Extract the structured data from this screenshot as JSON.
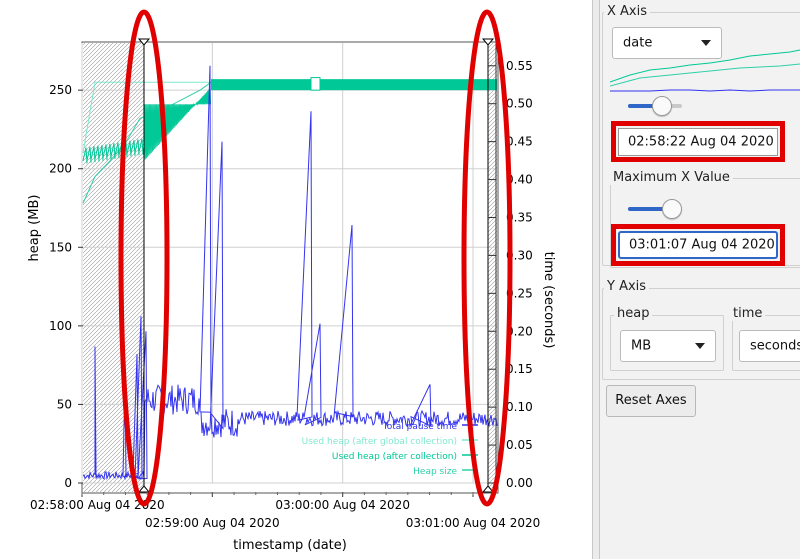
{
  "chart": {
    "y_left_label": "heap (MB)",
    "y_right_label": "time (seconds)",
    "x_label": "timestamp (date)",
    "y_left_ticks": [
      "0",
      "50",
      "100",
      "150",
      "200",
      "250"
    ],
    "y_right_ticks": [
      "0.00",
      "0.05",
      "0.10",
      "0.15",
      "0.20",
      "0.25",
      "0.30",
      "0.35",
      "0.40",
      "0.45",
      "0.50",
      "0.55"
    ],
    "x_ticks": [
      "02:58:00 Aug 04 2020",
      "02:59:00 Aug 04 2020",
      "03:00:00 Aug 04 2020",
      "03:01:00 Aug 04 2020"
    ],
    "legend": [
      {
        "label": "Total pause time",
        "color": "#3333ee"
      },
      {
        "label": "Used heap (after global collection)",
        "color": "#7fe8cf"
      },
      {
        "label": "Used heap (after collection)",
        "color": "#00c896"
      },
      {
        "label": "Heap size",
        "color": "#2fd0a8"
      }
    ]
  },
  "chart_data": {
    "type": "line",
    "xlabel": "timestamp (date)",
    "ylabel": "heap (MB)",
    "y2label": "time (seconds)",
    "ylim": [
      0,
      280
    ],
    "y2lim": [
      0,
      0.58
    ],
    "x": [
      "02:58:00",
      "02:58:30",
      "02:59:00",
      "02:59:30",
      "03:00:00",
      "03:00:30",
      "03:01:00"
    ],
    "series": [
      {
        "name": "Heap size",
        "axis": "left",
        "values": [
          178,
          195,
          238,
          255,
          255,
          255,
          255
        ]
      },
      {
        "name": "Used heap (after collection)",
        "axis": "left",
        "values": [
          205,
          226,
          250,
          255,
          255,
          255,
          255
        ]
      },
      {
        "name": "Total pause time",
        "axis": "right",
        "values": [
          0.005,
          0.12,
          0.11,
          0.08,
          0.08,
          0.09,
          0.09
        ]
      }
    ]
  },
  "panel": {
    "x_axis": {
      "title": "X Axis",
      "type_value": "date",
      "max_title": "Maximum X Value",
      "min_value": "02:58:22 Aug 04 2020",
      "max_value": "03:01:07 Aug 04 2020"
    },
    "y_axis": {
      "title": "Y Axis",
      "heap_title": "heap",
      "heap_unit": "MB",
      "time_title": "time",
      "time_unit": "seconds"
    },
    "reset_label": "Reset Axes"
  }
}
